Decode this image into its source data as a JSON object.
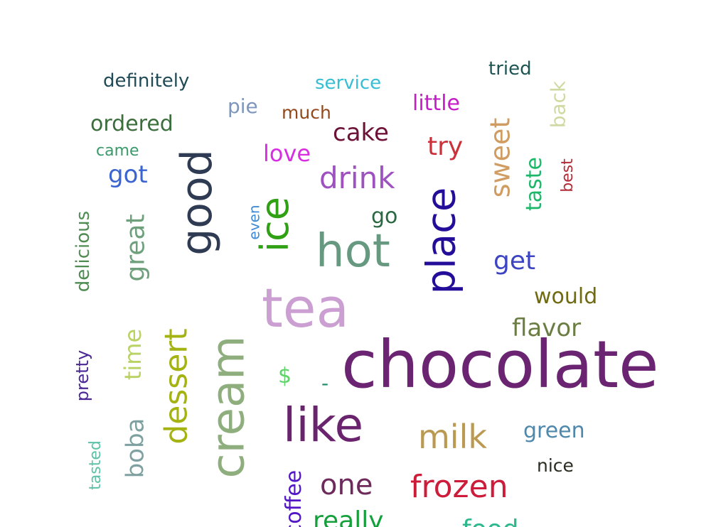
{
  "words": [
    {
      "id": "chocolate",
      "text": "chocolate",
      "color": "#6b2472"
    },
    {
      "id": "tea",
      "text": "tea",
      "color": "#cc9fd3"
    },
    {
      "id": "like",
      "text": "like",
      "color": "#6a246e"
    },
    {
      "id": "hot",
      "text": "hot",
      "color": "#669980"
    },
    {
      "id": "cream",
      "text": "cream",
      "color": "#8fae7e"
    },
    {
      "id": "good",
      "text": "good",
      "color": "#2e3b53"
    },
    {
      "id": "place",
      "text": "place",
      "color": "#240d99"
    },
    {
      "id": "ice",
      "text": "ice",
      "color": "#30a014"
    },
    {
      "id": "dessert",
      "text": "dessert",
      "color": "#a4b312"
    },
    {
      "id": "milk",
      "text": "milk",
      "color": "#ba9952"
    },
    {
      "id": "frozen",
      "text": "frozen",
      "color": "#cc1c3a"
    },
    {
      "id": "drink",
      "text": "drink",
      "color": "#9e52c0"
    },
    {
      "id": "one",
      "text": "one",
      "color": "#6e2a5c"
    },
    {
      "id": "sweet",
      "text": "sweet",
      "color": "#d09c62"
    },
    {
      "id": "great",
      "text": "great",
      "color": "#6ea07c"
    },
    {
      "id": "flavor",
      "text": "flavor",
      "color": "#6b7d42"
    },
    {
      "id": "boba",
      "text": "boba",
      "color": "#7fa0a0"
    },
    {
      "id": "cake",
      "text": "cake",
      "color": "#6d1237"
    },
    {
      "id": "get",
      "text": "get",
      "color": "#3e45c3"
    },
    {
      "id": "try",
      "text": "try",
      "color": "#cc3038"
    },
    {
      "id": "got",
      "text": "got",
      "color": "#3b64d0"
    },
    {
      "id": "time",
      "text": "time",
      "color": "#b9d263"
    },
    {
      "id": "delicious",
      "text": "delicious",
      "color": "#4e8c52"
    },
    {
      "id": "ordered",
      "text": "ordered",
      "color": "#3b6e3c"
    },
    {
      "id": "taste",
      "text": "taste",
      "color": "#1db76a"
    },
    {
      "id": "would",
      "text": "would",
      "color": "#706a10"
    },
    {
      "id": "love",
      "text": "love",
      "color": "#d62ee0"
    },
    {
      "id": "green",
      "text": "green",
      "color": "#4e88aa"
    },
    {
      "id": "little",
      "text": "little",
      "color": "#c41ec6"
    },
    {
      "id": "back",
      "text": "back",
      "color": "#cfdaa2"
    },
    {
      "id": "definitely",
      "text": "definitely",
      "color": "#1f4a56"
    },
    {
      "id": "service",
      "text": "service",
      "color": "#37bed3"
    },
    {
      "id": "pretty",
      "text": "pretty",
      "color": "#4b2896"
    },
    {
      "id": "tried",
      "text": "tried",
      "color": "#1c5552"
    },
    {
      "id": "pie",
      "text": "pie",
      "color": "#7d96bd"
    },
    {
      "id": "go",
      "text": "go",
      "color": "#2a6842"
    },
    {
      "id": "much",
      "text": "much",
      "color": "#94491c"
    },
    {
      "id": "nice",
      "text": "nice",
      "color": "#2c2c22"
    },
    {
      "id": "came",
      "text": "came",
      "color": "#3a9a6b"
    },
    {
      "id": "best",
      "text": "best",
      "color": "#b22c38"
    },
    {
      "id": "even",
      "text": "even",
      "color": "#3e8ad4"
    },
    {
      "id": "tasted",
      "text": "tasted",
      "color": "#5ec1a8"
    },
    {
      "id": "dollar",
      "text": "$",
      "color": "#5fd468"
    },
    {
      "id": "dash",
      "text": "-",
      "color": "#1f8e66"
    },
    {
      "id": "coffee",
      "text": "coffee",
      "color": "#5216c6"
    },
    {
      "id": "really",
      "text": "really",
      "color": "#14a13c"
    },
    {
      "id": "food",
      "text": "food",
      "color": "#2fb88e"
    }
  ]
}
